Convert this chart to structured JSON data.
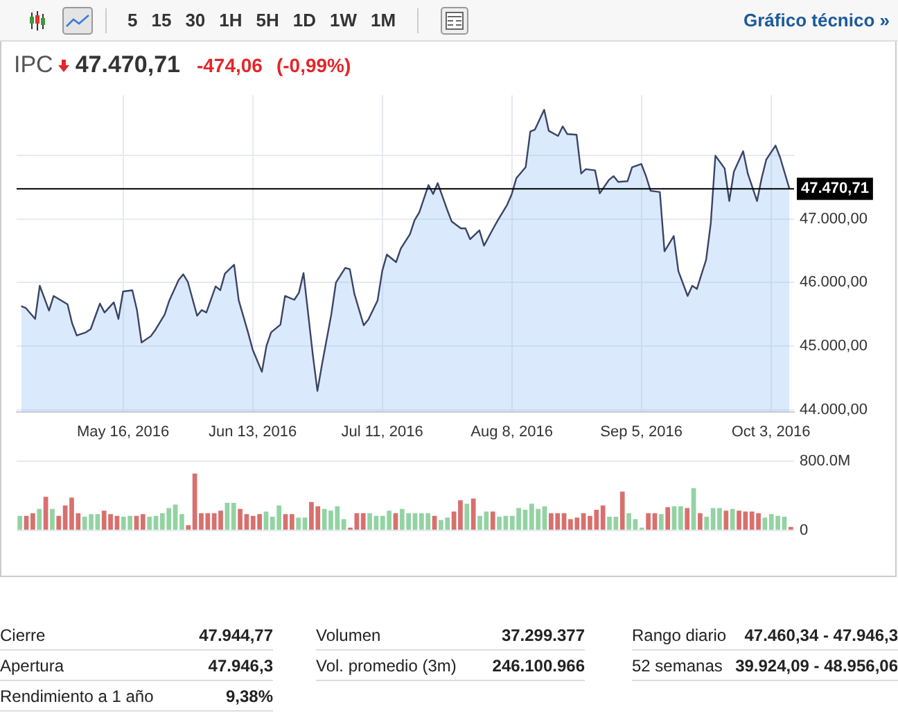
{
  "chart_data": [
    {
      "type": "other",
      "annotations": [
        "5",
        "15",
        "30",
        "1H",
        "5H",
        "1D",
        "1W",
        "1M",
        "Gráfico técnico »"
      ]
    },
    {
      "type": "area",
      "title": "IPC",
      "subtitle": "47.470,71",
      "annotations": [
        "-474,06",
        "(-0,99%)"
      ],
      "x": [
        "2016-04-24",
        "2016-04-25",
        "2016-04-27",
        "2016-04-28",
        "2016-04-30",
        "2016-05-01",
        "2016-05-04",
        "2016-05-05",
        "2016-05-06",
        "2016-05-08",
        "2016-05-09",
        "2016-05-11",
        "2016-05-12",
        "2016-05-14",
        "2016-05-15",
        "2016-05-16",
        "2016-05-18",
        "2016-05-19",
        "2016-05-20",
        "2016-05-22",
        "2016-05-23",
        "2016-05-25",
        "2016-05-26",
        "2016-05-28",
        "2016-05-29",
        "2016-05-30",
        "2016-06-01",
        "2016-06-02",
        "2016-06-03",
        "2016-06-05",
        "2016-06-06",
        "2016-06-07",
        "2016-06-09",
        "2016-06-10",
        "2016-06-12",
        "2016-06-13",
        "2016-06-15",
        "2016-06-16",
        "2016-06-17",
        "2016-06-19",
        "2016-06-20",
        "2016-06-22",
        "2016-06-23",
        "2016-06-24",
        "2016-06-26",
        "2016-06-27",
        "2016-06-28",
        "2016-06-30",
        "2016-07-01",
        "2016-07-03",
        "2016-07-04",
        "2016-07-05",
        "2016-07-07",
        "2016-07-08",
        "2016-07-10",
        "2016-07-11",
        "2016-07-12",
        "2016-07-14",
        "2016-07-15",
        "2016-07-17",
        "2016-07-18",
        "2016-07-19",
        "2016-07-21",
        "2016-07-22",
        "2016-07-23",
        "2016-07-25",
        "2016-07-26",
        "2016-07-28",
        "2016-07-29",
        "2016-07-30",
        "2016-08-01",
        "2016-08-02",
        "2016-08-04",
        "2016-08-05",
        "2016-08-07",
        "2016-08-08",
        "2016-08-09",
        "2016-08-11",
        "2016-08-12",
        "2016-08-13",
        "2016-08-15",
        "2016-08-16",
        "2016-08-18",
        "2016-08-19",
        "2016-08-20",
        "2016-08-22",
        "2016-08-23",
        "2016-08-24",
        "2016-08-26",
        "2016-08-27",
        "2016-08-29",
        "2016-08-30",
        "2016-08-31",
        "2016-09-02",
        "2016-09-03",
        "2016-09-05",
        "2016-09-06",
        "2016-09-07",
        "2016-09-09",
        "2016-09-10",
        "2016-09-12",
        "2016-09-13",
        "2016-09-15",
        "2016-09-16",
        "2016-09-17",
        "2016-09-19",
        "2016-09-20",
        "2016-09-21",
        "2016-09-23",
        "2016-09-24",
        "2016-09-25",
        "2016-09-27",
        "2016-09-28",
        "2016-09-30",
        "2016-10-01",
        "2016-10-02",
        "2016-10-04",
        "2016-10-05",
        "2016-10-07"
      ],
      "series": [
        {
          "color": "#3a4466",
          "values": [
            45630,
            45600,
            45430,
            45950,
            45560,
            45790,
            45660,
            45360,
            45170,
            45220,
            45270,
            45670,
            45530,
            45690,
            45430,
            45860,
            45880,
            45570,
            45060,
            45160,
            45260,
            45500,
            45720,
            46040,
            46130,
            46010,
            45480,
            45570,
            45530,
            45940,
            45880,
            46140,
            46280,
            45720,
            45220,
            44950,
            44600,
            45010,
            45220,
            45340,
            45790,
            45730,
            45840,
            46150,
            44870,
            44300,
            44720,
            45500,
            46000,
            46230,
            46210,
            45820,
            45330,
            45420,
            45720,
            46180,
            46440,
            46320,
            46530,
            46760,
            46980,
            47100,
            47530,
            47390,
            47560,
            47150,
            46960,
            46850,
            46850,
            46680,
            46820,
            46580,
            46850,
            46980,
            47220,
            47390,
            47640,
            47810,
            48370,
            48400,
            48710,
            48380,
            48300,
            48450,
            48330,
            48320,
            47710,
            47780,
            47760,
            47400,
            47610,
            47670,
            47580,
            47590,
            47810,
            47860,
            47670,
            47440,
            47420,
            46490,
            46730,
            46180,
            45790,
            45950,
            45900,
            46360,
            46930,
            47990,
            47790,
            47280,
            47740,
            48060,
            47710,
            47280,
            47640,
            47930,
            48150,
            47960,
            47470.71
          ]
        }
      ],
      "xlim": [
        "2016-04-23",
        "2016-10-08"
      ],
      "xticks": [
        {
          "value": "2016-05-16",
          "label": "May 16, 2016"
        },
        {
          "value": "2016-06-13",
          "label": "Jun 13, 2016"
        },
        {
          "value": "2016-07-11",
          "label": "Jul 11, 2016"
        },
        {
          "value": "2016-08-08",
          "label": "Aug 8, 2016"
        },
        {
          "value": "2016-09-05",
          "label": "Sep 5, 2016"
        },
        {
          "value": "2016-10-03",
          "label": "Oct 3, 2016"
        }
      ],
      "ylim": [
        43970,
        48940
      ],
      "yticks": [
        {
          "value": 44000,
          "label": "44.000,00"
        },
        {
          "value": 45000,
          "label": "45.000,00"
        },
        {
          "value": 46000,
          "label": "46.000,00"
        },
        {
          "value": 47000,
          "label": "47.000,00"
        },
        {
          "value": 48000,
          "label": null
        }
      ],
      "grid": true,
      "ref_lines": [
        {
          "axis": "y",
          "value": 47470.71,
          "label": "47.470,71",
          "color": "#000000"
        }
      ]
    },
    {
      "type": "bar",
      "categories": [
        null,
        null,
        null,
        null,
        null,
        null,
        null,
        null,
        null,
        null,
        null,
        null,
        null,
        null,
        null,
        null,
        null,
        null,
        null,
        null,
        null,
        null,
        null,
        null,
        null,
        null,
        null,
        null,
        null,
        null,
        null,
        null,
        null,
        null,
        null,
        null,
        null,
        null,
        null,
        null,
        null,
        null,
        null,
        null,
        null,
        null,
        null,
        null,
        null,
        null,
        null,
        null,
        null,
        null,
        null,
        null,
        null,
        null,
        null,
        null,
        null,
        null,
        null,
        null,
        null,
        null,
        null,
        null,
        null,
        null,
        null,
        null,
        null,
        null,
        null,
        null,
        null,
        null,
        null,
        null,
        null,
        null,
        null,
        null,
        null,
        null,
        null,
        null,
        null,
        null,
        null,
        null,
        null,
        null,
        null,
        null,
        null,
        null,
        null,
        null,
        null,
        null,
        null,
        null,
        null,
        null,
        null,
        null,
        null,
        null,
        null,
        null,
        null,
        null,
        null,
        null,
        null,
        null,
        null,
        null
      ],
      "values": [
        170000000,
        170000000,
        200000000,
        250000000,
        390000000,
        250000000,
        170000000,
        290000000,
        380000000,
        200000000,
        160000000,
        190000000,
        190000000,
        230000000,
        190000000,
        170000000,
        160000000,
        170000000,
        170000000,
        190000000,
        160000000,
        170000000,
        200000000,
        260000000,
        300000000,
        190000000,
        60000000,
        660000000,
        200000000,
        200000000,
        200000000,
        230000000,
        320000000,
        320000000,
        250000000,
        190000000,
        170000000,
        190000000,
        220000000,
        160000000,
        290000000,
        190000000,
        190000000,
        150000000,
        150000000,
        330000000,
        280000000,
        250000000,
        230000000,
        280000000,
        130000000,
        30000000,
        200000000,
        200000000,
        200000000,
        170000000,
        170000000,
        230000000,
        200000000,
        250000000,
        200000000,
        200000000,
        200000000,
        200000000,
        170000000,
        120000000,
        150000000,
        220000000,
        350000000,
        310000000,
        370000000,
        170000000,
        220000000,
        220000000,
        160000000,
        170000000,
        170000000,
        260000000,
        240000000,
        310000000,
        250000000,
        280000000,
        200000000,
        200000000,
        200000000,
        130000000,
        150000000,
        200000000,
        170000000,
        240000000,
        290000000,
        160000000,
        160000000,
        450000000,
        200000000,
        130000000,
        10000000,
        200000000,
        200000000,
        190000000,
        270000000,
        280000000,
        280000000,
        260000000,
        490000000,
        200000000,
        160000000,
        260000000,
        260000000,
        230000000,
        250000000,
        230000000,
        220000000,
        220000000,
        200000000,
        150000000,
        190000000,
        170000000,
        160000000,
        40000000
      ],
      "colors": [
        "#93d3a3",
        "#d8706e",
        "#d8706e",
        "#93d3a3",
        "#d8706e",
        "#93d3a3",
        "#d8706e",
        "#d8706e",
        "#d8706e",
        "#d8706e",
        "#93d3a3",
        "#93d3a3",
        "#93d3a3",
        "#d8706e",
        "#d8706e",
        "#d8706e",
        "#93d3a3",
        "#93d3a3",
        "#d8706e",
        "#d8706e",
        "#93d3a3",
        "#93d3a3",
        "#93d3a3",
        "#93d3a3",
        "#93d3a3",
        "#93d3a3",
        "#d8706e",
        "#d8706e",
        "#d8706e",
        "#d8706e",
        "#d8706e",
        "#d8706e",
        "#93d3a3",
        "#93d3a3",
        "#d8706e",
        "#d8706e",
        "#d8706e",
        "#d8706e",
        "#93d3a3",
        "#93d3a3",
        "#93d3a3",
        "#d8706e",
        "#d8706e",
        "#93d3a3",
        "#93d3a3",
        "#d8706e",
        "#d8706e",
        "#93d3a3",
        "#93d3a3",
        "#93d3a3",
        "#93d3a3",
        "#d8706e",
        "#d8706e",
        "#d8706e",
        "#93d3a3",
        "#93d3a3",
        "#93d3a3",
        "#93d3a3",
        "#d8706e",
        "#93d3a3",
        "#93d3a3",
        "#93d3a3",
        "#93d3a3",
        "#93d3a3",
        "#d8706e",
        "#93d3a3",
        "#93d3a3",
        "#d8706e",
        "#d8706e",
        "#93d3a3",
        "#d8706e",
        "#93d3a3",
        "#93d3a3",
        "#d8706e",
        "#93d3a3",
        "#93d3a3",
        "#93d3a3",
        "#93d3a3",
        "#93d3a3",
        "#93d3a3",
        "#93d3a3",
        "#93d3a3",
        "#d8706e",
        "#d8706e",
        "#d8706e",
        "#d8706e",
        "#d8706e",
        "#d8706e",
        "#d8706e",
        "#d8706e",
        "#d8706e",
        "#93d3a3",
        "#93d3a3",
        "#d8706e",
        "#93d3a3",
        "#93d3a3",
        "#93d3a3",
        "#d8706e",
        "#d8706e",
        "#93d3a3",
        "#d8706e",
        "#93d3a3",
        "#93d3a3",
        "#d8706e",
        "#93d3a3",
        "#d8706e",
        "#93d3a3",
        "#93d3a3",
        "#93d3a3",
        "#d8706e",
        "#93d3a3",
        "#d8706e",
        "#d8706e",
        "#d8706e",
        "#d8706e",
        "#93d3a3",
        "#93d3a3",
        "#93d3a3",
        "#93d3a3",
        "#d8706e"
      ],
      "ylim": [
        0,
        800000000
      ],
      "yticks": [
        0,
        {
          "value": 800000000,
          "label": "800.0M"
        }
      ],
      "grid": "y",
      "tick_labels": "y"
    },
    {
      "type": "other",
      "annotations": [
        "Cierre",
        "47.944,77",
        "Apertura",
        "47.946,3",
        "Rendimiento a 1 año",
        "9,38%"
      ]
    },
    {
      "type": "other",
      "annotations": [
        "Volumen",
        "37.299.377",
        "Vol. promedio (3m)",
        "246.100.966"
      ]
    },
    {
      "type": "other",
      "annotations": [
        "Rango diario",
        "47.460,34 - 47.946,3",
        "52 semanas",
        "39.924,09 - 48.956,06"
      ]
    }
  ]
}
